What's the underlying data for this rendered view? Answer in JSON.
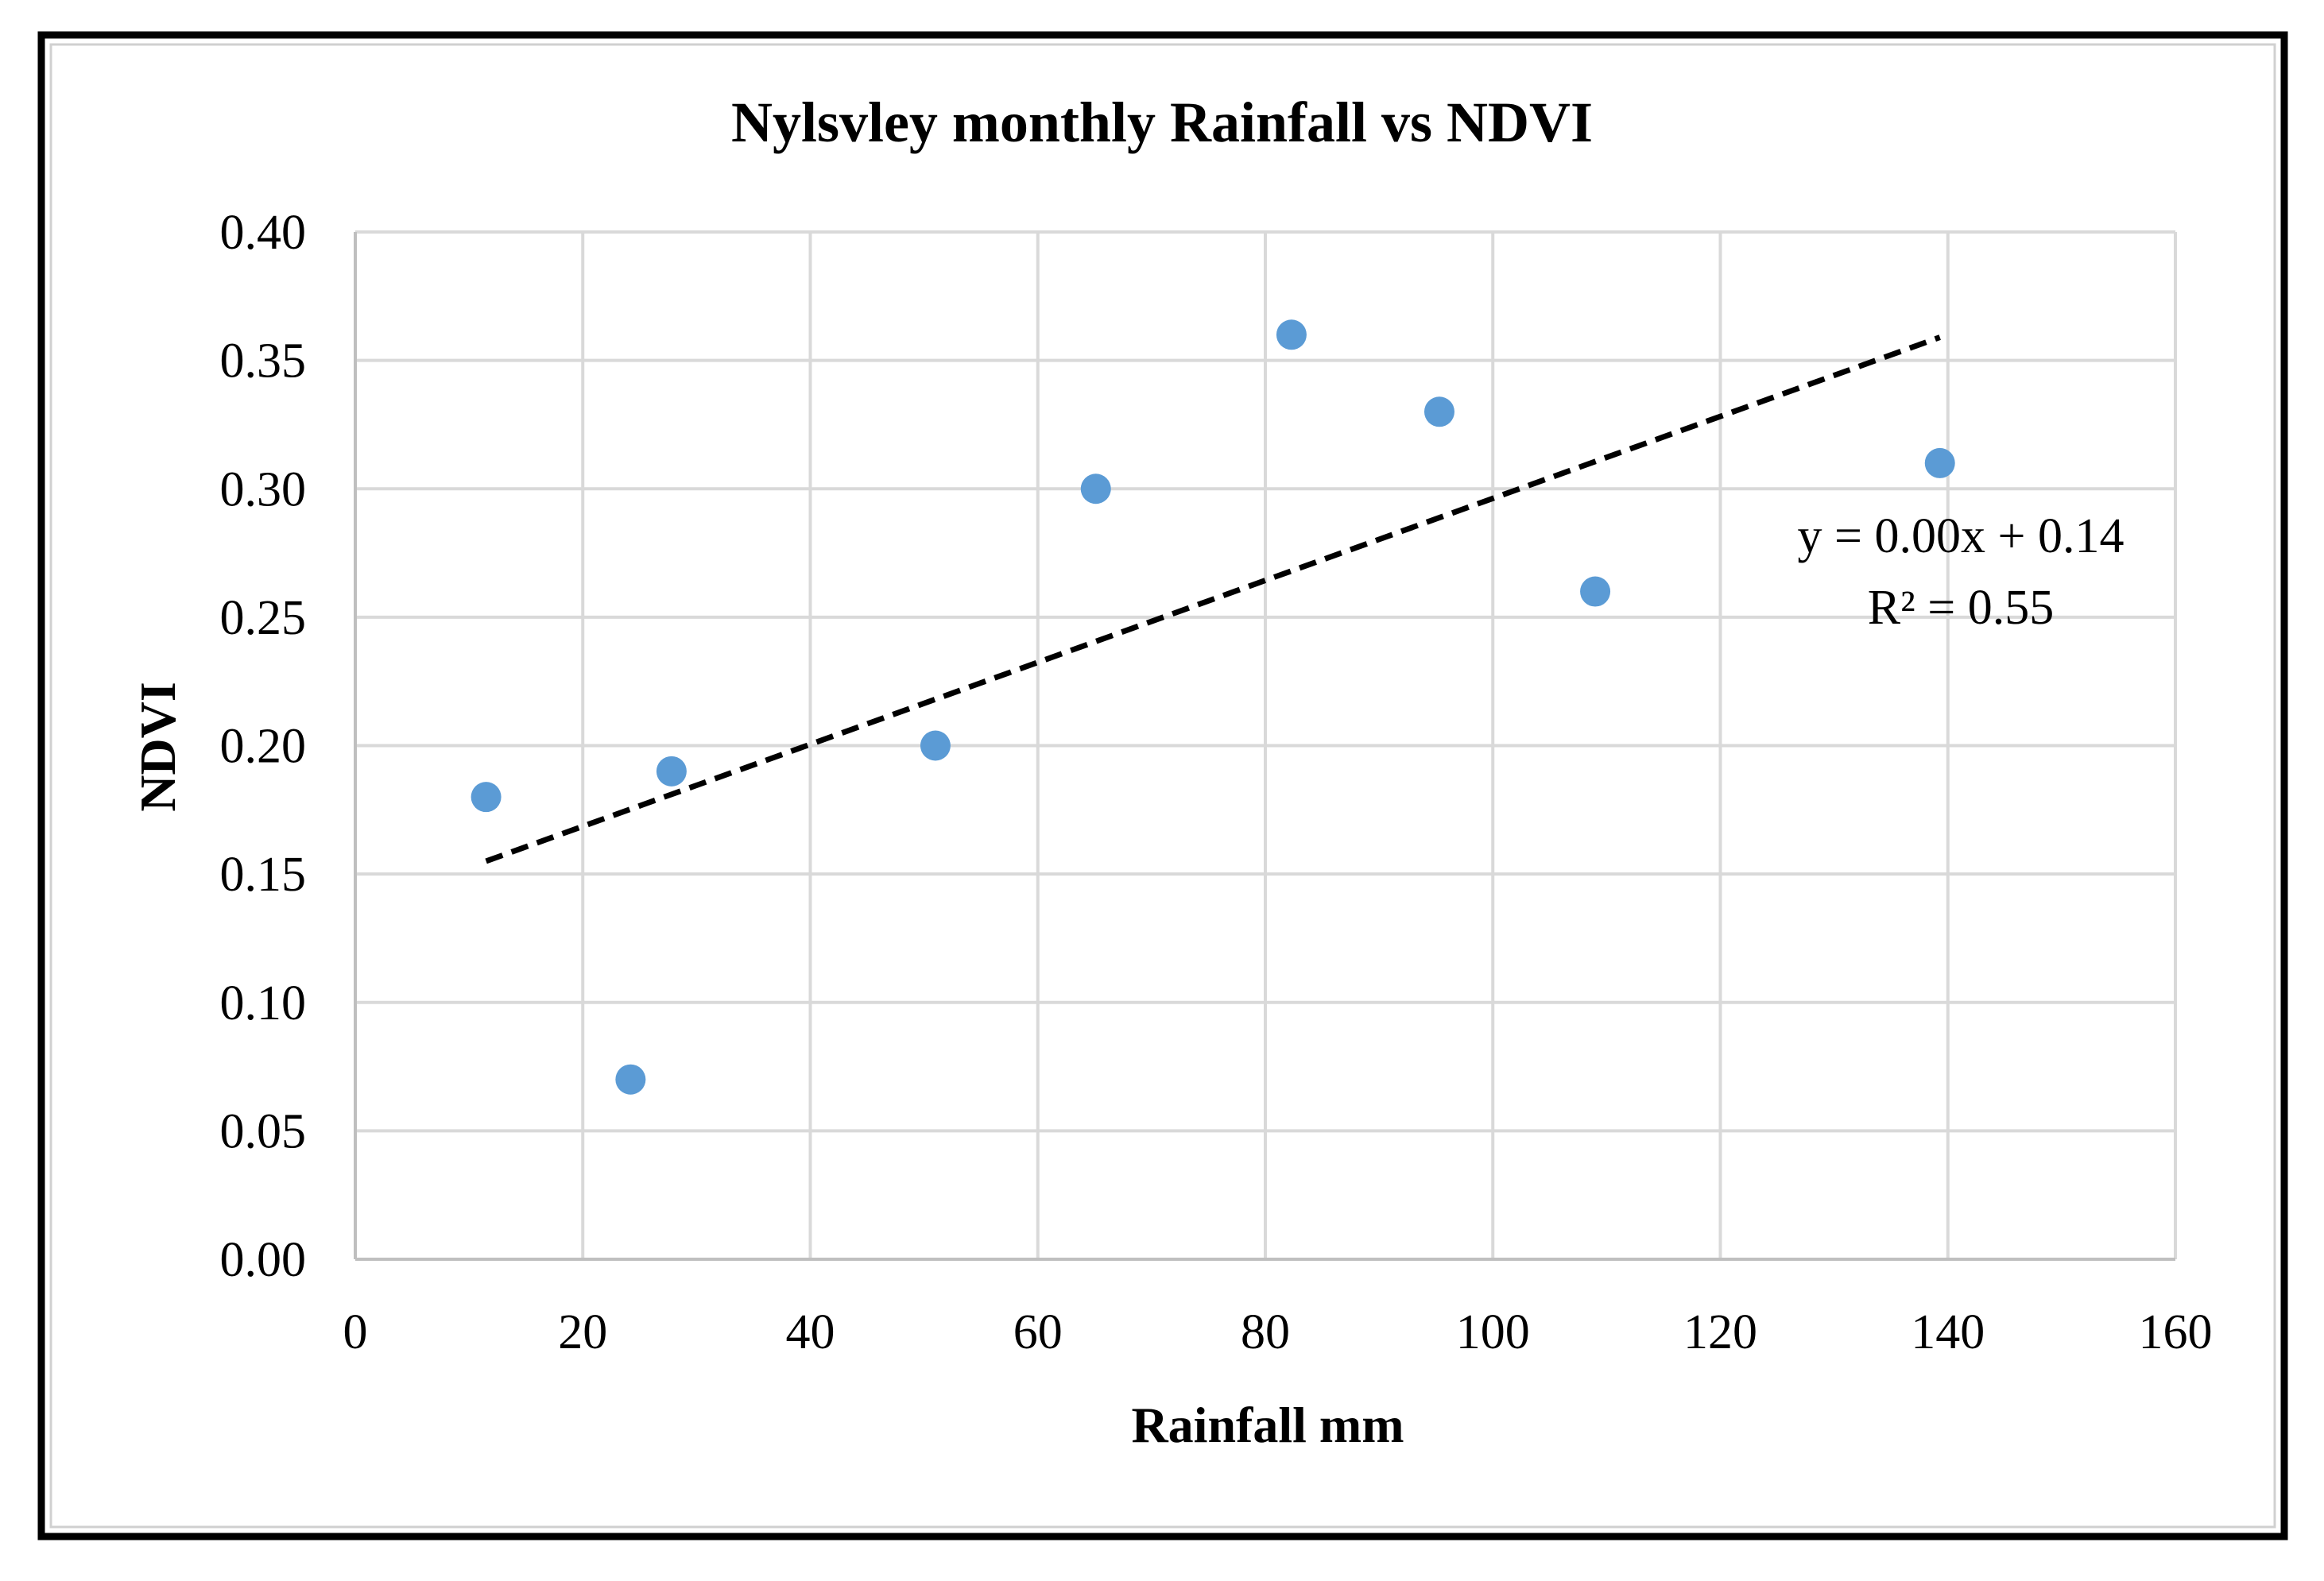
{
  "chart_data": {
    "type": "scatter",
    "title": "Nylsvley monthly Rainfall vs NDVI",
    "xlabel": "Rainfall mm",
    "ylabel": "NDVI",
    "xlim": [
      0,
      160
    ],
    "ylim": [
      0,
      0.4
    ],
    "x_ticks": [
      0,
      20,
      40,
      60,
      80,
      100,
      120,
      140,
      160
    ],
    "x_tick_labels": [
      "0",
      "20",
      "40",
      "60",
      "80",
      "100",
      "120",
      "140",
      "160"
    ],
    "y_ticks": [
      0,
      0.05,
      0.1,
      0.15,
      0.2,
      0.25,
      0.3,
      0.35,
      0.4
    ],
    "y_tick_labels": [
      "0.00",
      "0.05",
      "0.10",
      "0.15",
      "0.20",
      "0.25",
      "0.30",
      "0.35",
      "0.40"
    ],
    "grid": true,
    "series": [
      {
        "name": "NDVI",
        "color": "#5b9bd5",
        "points": [
          {
            "x": 11.5,
            "y": 0.18
          },
          {
            "x": 24.2,
            "y": 0.07
          },
          {
            "x": 27.8,
            "y": 0.19
          },
          {
            "x": 51.0,
            "y": 0.2
          },
          {
            "x": 65.1,
            "y": 0.3
          },
          {
            "x": 82.3,
            "y": 0.36
          },
          {
            "x": 95.3,
            "y": 0.33
          },
          {
            "x": 109.0,
            "y": 0.26
          },
          {
            "x": 139.3,
            "y": 0.31
          }
        ]
      }
    ],
    "trendline": {
      "type": "linear",
      "style": "dashed",
      "color": "#000000",
      "x_start": 11.5,
      "y_start": 0.155,
      "x_end": 139.3,
      "y_end": 0.359,
      "equation": "y = 0.00x + 0.14",
      "r_squared": "R² = 0.55"
    }
  }
}
